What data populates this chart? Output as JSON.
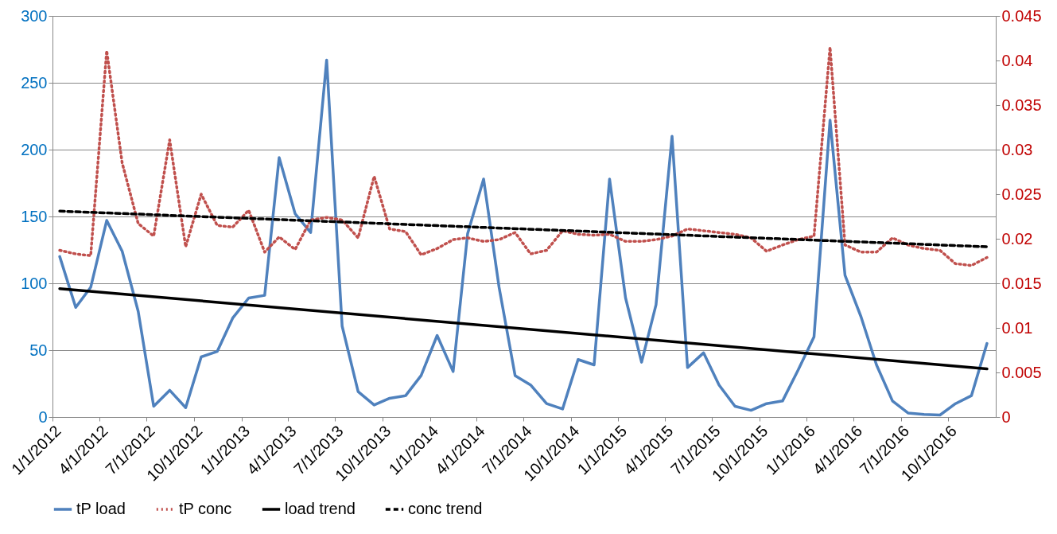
{
  "chart_data": {
    "type": "line",
    "x": [
      "2012-01-15",
      "2012-02-15",
      "2012-03-15",
      "2012-04-15",
      "2012-05-15",
      "2012-06-15",
      "2012-07-15",
      "2012-08-15",
      "2012-09-15",
      "2012-10-15",
      "2012-11-15",
      "2012-12-15",
      "2013-01-15",
      "2013-02-15",
      "2013-03-15",
      "2013-04-15",
      "2013-05-15",
      "2013-06-15",
      "2013-07-15",
      "2013-08-15",
      "2013-09-15",
      "2013-10-15",
      "2013-11-15",
      "2013-12-15",
      "2014-01-15",
      "2014-02-15",
      "2014-03-15",
      "2014-04-15",
      "2014-05-15",
      "2014-06-15",
      "2014-07-15",
      "2014-08-15",
      "2014-09-15",
      "2014-10-15",
      "2014-11-15",
      "2014-12-15",
      "2015-01-15",
      "2015-02-15",
      "2015-03-15",
      "2015-04-15",
      "2015-05-15",
      "2015-06-15",
      "2015-07-15",
      "2015-08-15",
      "2015-09-15",
      "2015-10-15",
      "2015-11-15",
      "2015-12-15",
      "2016-01-15",
      "2016-02-15",
      "2016-03-15",
      "2016-04-15",
      "2016-05-15",
      "2016-06-15",
      "2016-07-15",
      "2016-08-15",
      "2016-09-15",
      "2016-10-15",
      "2016-11-15",
      "2016-12-15"
    ],
    "series": [
      {
        "name": "tP load",
        "color": "#4f81bd",
        "line_style": "solid",
        "values": [
          120,
          82,
          97,
          147,
          124,
          79,
          8,
          20,
          7,
          45,
          49,
          74,
          89,
          91,
          194,
          152,
          138,
          267,
          68,
          19,
          9,
          14,
          16,
          31,
          61,
          34,
          137,
          178,
          97,
          31,
          24,
          10,
          6,
          43,
          39,
          178,
          89,
          41,
          84,
          210,
          37,
          48,
          24,
          8,
          5,
          10,
          12,
          35,
          60,
          222,
          106,
          75,
          39,
          12,
          3,
          2,
          1.5,
          10,
          16,
          55
        ]
      },
      {
        "name": "tP conc",
        "color": "#c0504d",
        "line_style": "dotted",
        "axis": "y2",
        "values": [
          0.0187,
          0.0183,
          0.0181,
          0.0411,
          0.0285,
          0.0217,
          0.0203,
          0.0311,
          0.0191,
          0.025,
          0.0215,
          0.0213,
          0.0232,
          0.0185,
          0.0202,
          0.0188,
          0.0221,
          0.0224,
          0.0221,
          0.0201,
          0.027,
          0.0211,
          0.0208,
          0.0182,
          0.0189,
          0.0199,
          0.0201,
          0.0197,
          0.0199,
          0.0207,
          0.0183,
          0.0187,
          0.0209,
          0.0205,
          0.0204,
          0.0205,
          0.0197,
          0.0197,
          0.0199,
          0.0203,
          0.0211,
          0.0209,
          0.0207,
          0.0205,
          0.0201,
          0.0186,
          0.0193,
          0.0199,
          0.0203,
          0.0415,
          0.0193,
          0.0185,
          0.0185,
          0.0201,
          0.0193,
          0.0189,
          0.0187,
          0.0172,
          0.017,
          0.0179
        ]
      },
      {
        "name": "load trend",
        "color": "#000000",
        "line_style": "solid",
        "x": [
          "2012-01-15",
          "2016-12-15"
        ],
        "values": [
          96,
          36
        ]
      },
      {
        "name": "conc trend",
        "color": "#000000",
        "line_style": "dashed",
        "axis": "y2",
        "x": [
          "2012-01-15",
          "2016-12-15"
        ],
        "values": [
          0.0231,
          0.0191
        ]
      }
    ],
    "xlim": [
      "2012-01-01",
      "2017-01-01"
    ],
    "xticks": [
      {
        "value": "2012-01-01",
        "label": "1/1/2012"
      },
      {
        "value": "2012-04-01",
        "label": "4/1/2012"
      },
      {
        "value": "2012-07-01",
        "label": "7/1/2012"
      },
      {
        "value": "2012-10-01",
        "label": "10/1/2012"
      },
      {
        "value": "2013-01-01",
        "label": "1/1/2013"
      },
      {
        "value": "2013-04-01",
        "label": "4/1/2013"
      },
      {
        "value": "2013-07-01",
        "label": "7/1/2013"
      },
      {
        "value": "2013-10-01",
        "label": "10/1/2013"
      },
      {
        "value": "2014-01-01",
        "label": "1/1/2014"
      },
      {
        "value": "2014-04-01",
        "label": "4/1/2014"
      },
      {
        "value": "2014-07-01",
        "label": "7/1/2014"
      },
      {
        "value": "2014-10-01",
        "label": "10/1/2014"
      },
      {
        "value": "2015-01-01",
        "label": "1/1/2015"
      },
      {
        "value": "2015-04-01",
        "label": "4/1/2015"
      },
      {
        "value": "2015-07-01",
        "label": "7/1/2015"
      },
      {
        "value": "2015-10-01",
        "label": "10/1/2015"
      },
      {
        "value": "2016-01-01",
        "label": "1/1/2016"
      },
      {
        "value": "2016-04-01",
        "label": "4/1/2016"
      },
      {
        "value": "2016-07-01",
        "label": "7/1/2016"
      },
      {
        "value": "2016-10-01",
        "label": "10/1/2016"
      }
    ],
    "ylim": [
      0,
      300
    ],
    "yticks": [
      0,
      50,
      100,
      150,
      200,
      250,
      300
    ],
    "y2lim": [
      0,
      0.045
    ],
    "y2ticks": [
      0,
      0.005,
      0.01,
      0.015,
      0.02,
      0.025,
      0.03,
      0.035,
      0.04,
      0.045
    ],
    "grid": "y",
    "legend": "bottom",
    "marker": "none"
  }
}
